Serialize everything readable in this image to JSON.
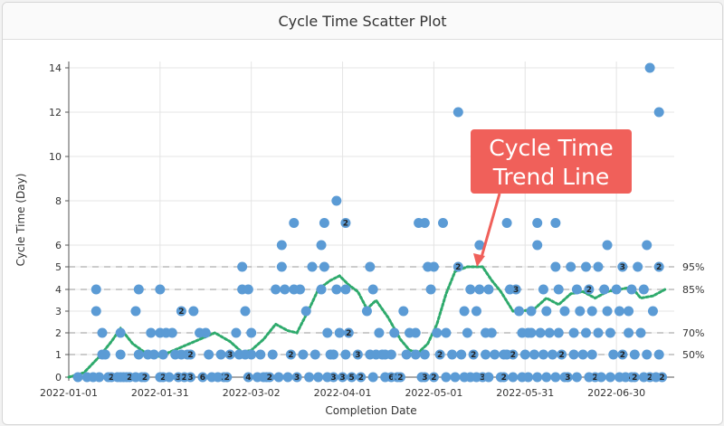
{
  "page": {
    "title": "Cycle Time Scatter Plot"
  },
  "chart_data": {
    "type": "scatter",
    "title": "Cycle Time Scatter Plot",
    "xlabel": "Completion Date",
    "ylabel": "Cycle Time (Day)",
    "x_ticks": [
      "2022-01-01",
      "2022-01-31",
      "2022-03-02",
      "2022-04-01",
      "2022-05-01",
      "2022-05-31",
      "2022-06-30"
    ],
    "y_ticks": [
      0,
      1,
      2,
      3,
      4,
      5,
      6,
      8,
      10,
      12,
      14
    ],
    "y_scale": "nonlinear",
    "xlim": [
      "2022-01-01",
      "2022-07-19"
    ],
    "grid": true,
    "percentiles": [
      {
        "label": "95%",
        "value": 5
      },
      {
        "label": "85%",
        "value": 4
      },
      {
        "label": "70%",
        "value": 2
      },
      {
        "label": "50%",
        "value": 1
      }
    ],
    "annotation": {
      "lines": [
        "Cycle Time",
        "Trend Line"
      ],
      "color": "#f0605a"
    },
    "colors": {
      "point": "#5b9bd5",
      "trend": "#2eaa6c",
      "percentile_line": "#999999"
    },
    "points": [
      {
        "x": "2022-01-04",
        "y": 0
      },
      {
        "x": "2022-01-07",
        "y": 0
      },
      {
        "x": "2022-01-09",
        "y": 0
      },
      {
        "x": "2022-01-10",
        "y": 4
      },
      {
        "x": "2022-01-10",
        "y": 3
      },
      {
        "x": "2022-01-11",
        "y": 0
      },
      {
        "x": "2022-01-12",
        "y": 1
      },
      {
        "x": "2022-01-12",
        "y": 2
      },
      {
        "x": "2022-01-13",
        "y": 1
      },
      {
        "x": "2022-01-14",
        "y": 0
      },
      {
        "x": "2022-01-15",
        "y": 0,
        "n": 2
      },
      {
        "x": "2022-01-17",
        "y": 0
      },
      {
        "x": "2022-01-18",
        "y": 0
      },
      {
        "x": "2022-01-18",
        "y": 2
      },
      {
        "x": "2022-01-18",
        "y": 1
      },
      {
        "x": "2022-01-19",
        "y": 0
      },
      {
        "x": "2022-01-20",
        "y": 0
      },
      {
        "x": "2022-01-21",
        "y": 0,
        "n": 2
      },
      {
        "x": "2022-01-23",
        "y": 0
      },
      {
        "x": "2022-01-23",
        "y": 3
      },
      {
        "x": "2022-01-24",
        "y": 1
      },
      {
        "x": "2022-01-24",
        "y": 4
      },
      {
        "x": "2022-01-25",
        "y": 0
      },
      {
        "x": "2022-01-26",
        "y": 0,
        "n": 2
      },
      {
        "x": "2022-01-27",
        "y": 1
      },
      {
        "x": "2022-01-28",
        "y": 2
      },
      {
        "x": "2022-01-29",
        "y": 1
      },
      {
        "x": "2022-01-31",
        "y": 0
      },
      {
        "x": "2022-01-31",
        "y": 4
      },
      {
        "x": "2022-01-31",
        "y": 2
      },
      {
        "x": "2022-02-01",
        "y": 1
      },
      {
        "x": "2022-02-01",
        "y": 0,
        "n": 2
      },
      {
        "x": "2022-02-02",
        "y": 2
      },
      {
        "x": "2022-02-03",
        "y": 0
      },
      {
        "x": "2022-02-04",
        "y": 2
      },
      {
        "x": "2022-02-05",
        "y": 1
      },
      {
        "x": "2022-02-06",
        "y": 0,
        "n": 3
      },
      {
        "x": "2022-02-07",
        "y": 3,
        "n": 2
      },
      {
        "x": "2022-02-07",
        "y": 1
      },
      {
        "x": "2022-02-08",
        "y": 0,
        "n": 2
      },
      {
        "x": "2022-02-09",
        "y": 1
      },
      {
        "x": "2022-02-10",
        "y": 0,
        "n": 3
      },
      {
        "x": "2022-02-10",
        "y": 1,
        "n": 2
      },
      {
        "x": "2022-02-11",
        "y": 3
      },
      {
        "x": "2022-02-13",
        "y": 2
      },
      {
        "x": "2022-02-14",
        "y": 0,
        "n": 6
      },
      {
        "x": "2022-02-15",
        "y": 2
      },
      {
        "x": "2022-02-16",
        "y": 1
      },
      {
        "x": "2022-02-17",
        "y": 0
      },
      {
        "x": "2022-02-19",
        "y": 0
      },
      {
        "x": "2022-02-20",
        "y": 1
      },
      {
        "x": "2022-02-21",
        "y": 0,
        "n": 3
      },
      {
        "x": "2022-02-22",
        "y": 0,
        "n": 2
      },
      {
        "x": "2022-02-23",
        "y": 1,
        "n": 3
      },
      {
        "x": "2022-02-25",
        "y": 2
      },
      {
        "x": "2022-02-26",
        "y": 1
      },
      {
        "x": "2022-02-27",
        "y": 5
      },
      {
        "x": "2022-02-27",
        "y": 4
      },
      {
        "x": "2022-02-28",
        "y": 3
      },
      {
        "x": "2022-02-28",
        "y": 1
      },
      {
        "x": "2022-03-01",
        "y": 0,
        "n": 4
      },
      {
        "x": "2022-03-01",
        "y": 4
      },
      {
        "x": "2022-03-02",
        "y": 2
      },
      {
        "x": "2022-03-02",
        "y": 1
      },
      {
        "x": "2022-03-04",
        "y": 0
      },
      {
        "x": "2022-03-05",
        "y": 1
      },
      {
        "x": "2022-03-06",
        "y": 0
      },
      {
        "x": "2022-03-07",
        "y": 0
      },
      {
        "x": "2022-03-08",
        "y": 0,
        "n": 2
      },
      {
        "x": "2022-03-09",
        "y": 1
      },
      {
        "x": "2022-03-10",
        "y": 4
      },
      {
        "x": "2022-03-11",
        "y": 0
      },
      {
        "x": "2022-03-12",
        "y": 6
      },
      {
        "x": "2022-03-12",
        "y": 5
      },
      {
        "x": "2022-03-13",
        "y": 4
      },
      {
        "x": "2022-03-14",
        "y": 0
      },
      {
        "x": "2022-03-15",
        "y": 1,
        "n": 2
      },
      {
        "x": "2022-03-16",
        "y": 7
      },
      {
        "x": "2022-03-16",
        "y": 4
      },
      {
        "x": "2022-03-17",
        "y": 0,
        "n": 3
      },
      {
        "x": "2022-03-18",
        "y": 4
      },
      {
        "x": "2022-03-19",
        "y": 1
      },
      {
        "x": "2022-03-20",
        "y": 3
      },
      {
        "x": "2022-03-21",
        "y": 0
      },
      {
        "x": "2022-03-22",
        "y": 5
      },
      {
        "x": "2022-03-23",
        "y": 1
      },
      {
        "x": "2022-03-24",
        "y": 0
      },
      {
        "x": "2022-03-25",
        "y": 6
      },
      {
        "x": "2022-03-25",
        "y": 4
      },
      {
        "x": "2022-03-26",
        "y": 5
      },
      {
        "x": "2022-03-26",
        "y": 7
      },
      {
        "x": "2022-03-27",
        "y": 0
      },
      {
        "x": "2022-03-27",
        "y": 2
      },
      {
        "x": "2022-03-28",
        "y": 1
      },
      {
        "x": "2022-03-29",
        "y": 0,
        "n": 3
      },
      {
        "x": "2022-03-29",
        "y": 1
      },
      {
        "x": "2022-03-30",
        "y": 8
      },
      {
        "x": "2022-03-30",
        "y": 4
      },
      {
        "x": "2022-03-31",
        "y": 2
      },
      {
        "x": "2022-04-01",
        "y": 0,
        "n": 3
      },
      {
        "x": "2022-04-02",
        "y": 1
      },
      {
        "x": "2022-04-02",
        "y": 4
      },
      {
        "x": "2022-04-02",
        "y": 7,
        "n": 2
      },
      {
        "x": "2022-04-03",
        "y": 2,
        "n": 2
      },
      {
        "x": "2022-04-04",
        "y": 0,
        "n": 5
      },
      {
        "x": "2022-04-06",
        "y": 1,
        "n": 3
      },
      {
        "x": "2022-04-07",
        "y": 0,
        "n": 2
      },
      {
        "x": "2022-04-09",
        "y": 3
      },
      {
        "x": "2022-04-10",
        "y": 5
      },
      {
        "x": "2022-04-10",
        "y": 1
      },
      {
        "x": "2022-04-11",
        "y": 0
      },
      {
        "x": "2022-04-11",
        "y": 4
      },
      {
        "x": "2022-04-12",
        "y": 1
      },
      {
        "x": "2022-04-13",
        "y": 2
      },
      {
        "x": "2022-04-14",
        "y": 1
      },
      {
        "x": "2022-04-15",
        "y": 0
      },
      {
        "x": "2022-04-15",
        "y": 1
      },
      {
        "x": "2022-04-17",
        "y": 0,
        "n": 6
      },
      {
        "x": "2022-04-17",
        "y": 1
      },
      {
        "x": "2022-04-18",
        "y": 2
      },
      {
        "x": "2022-04-19",
        "y": 0,
        "n": 3
      },
      {
        "x": "2022-04-20",
        "y": 0,
        "n": 2
      },
      {
        "x": "2022-04-21",
        "y": 3
      },
      {
        "x": "2022-04-22",
        "y": 1
      },
      {
        "x": "2022-04-23",
        "y": 2
      },
      {
        "x": "2022-04-25",
        "y": 2
      },
      {
        "x": "2022-04-25",
        "y": 1
      },
      {
        "x": "2022-04-26",
        "y": 7
      },
      {
        "x": "2022-04-27",
        "y": 0
      },
      {
        "x": "2022-04-28",
        "y": 0,
        "n": 3
      },
      {
        "x": "2022-04-28",
        "y": 7
      },
      {
        "x": "2022-04-28",
        "y": 1
      },
      {
        "x": "2022-04-29",
        "y": 5
      },
      {
        "x": "2022-04-30",
        "y": 4
      },
      {
        "x": "2022-05-01",
        "y": 5
      },
      {
        "x": "2022-05-01",
        "y": 0,
        "n": 2
      },
      {
        "x": "2022-05-02",
        "y": 2
      },
      {
        "x": "2022-05-03",
        "y": 1,
        "n": 2
      },
      {
        "x": "2022-05-04",
        "y": 7
      },
      {
        "x": "2022-05-05",
        "y": 0
      },
      {
        "x": "2022-05-05",
        "y": 2
      },
      {
        "x": "2022-05-07",
        "y": 1
      },
      {
        "x": "2022-05-08",
        "y": 0
      },
      {
        "x": "2022-05-09",
        "y": 5,
        "n": 2
      },
      {
        "x": "2022-05-09",
        "y": 12
      },
      {
        "x": "2022-05-10",
        "y": 1
      },
      {
        "x": "2022-05-11",
        "y": 0
      },
      {
        "x": "2022-05-11",
        "y": 3
      },
      {
        "x": "2022-05-12",
        "y": 2
      },
      {
        "x": "2022-05-13",
        "y": 4
      },
      {
        "x": "2022-05-13",
        "y": 0
      },
      {
        "x": "2022-05-14",
        "y": 1,
        "n": 2
      },
      {
        "x": "2022-05-15",
        "y": 3
      },
      {
        "x": "2022-05-15",
        "y": 0
      },
      {
        "x": "2022-05-16",
        "y": 6
      },
      {
        "x": "2022-05-16",
        "y": 4
      },
      {
        "x": "2022-05-17",
        "y": 0,
        "n": 3
      },
      {
        "x": "2022-05-18",
        "y": 1
      },
      {
        "x": "2022-05-18",
        "y": 2
      },
      {
        "x": "2022-05-19",
        "y": 4
      },
      {
        "x": "2022-05-19",
        "y": 0
      },
      {
        "x": "2022-05-20",
        "y": 2
      },
      {
        "x": "2022-05-21",
        "y": 1
      },
      {
        "x": "2022-05-23",
        "y": 0
      },
      {
        "x": "2022-05-24",
        "y": 0,
        "n": 2
      },
      {
        "x": "2022-05-24",
        "y": 1
      },
      {
        "x": "2022-05-25",
        "y": 7
      },
      {
        "x": "2022-05-25",
        "y": 1
      },
      {
        "x": "2022-05-26",
        "y": 4
      },
      {
        "x": "2022-05-27",
        "y": 0
      },
      {
        "x": "2022-05-27",
        "y": 1,
        "n": 2
      },
      {
        "x": "2022-05-28",
        "y": 4,
        "n": 3
      },
      {
        "x": "2022-05-29",
        "y": 3
      },
      {
        "x": "2022-05-30",
        "y": 2
      },
      {
        "x": "2022-05-30",
        "y": 0
      },
      {
        "x": "2022-05-31",
        "y": 1
      },
      {
        "x": "2022-06-01",
        "y": 0
      },
      {
        "x": "2022-06-01",
        "y": 2
      },
      {
        "x": "2022-06-02",
        "y": 3
      },
      {
        "x": "2022-06-02",
        "y": 2
      },
      {
        "x": "2022-06-03",
        "y": 1
      },
      {
        "x": "2022-06-04",
        "y": 0
      },
      {
        "x": "2022-06-04",
        "y": 7
      },
      {
        "x": "2022-06-04",
        "y": 6
      },
      {
        "x": "2022-06-05",
        "y": 2
      },
      {
        "x": "2022-06-06",
        "y": 4
      },
      {
        "x": "2022-06-06",
        "y": 1
      },
      {
        "x": "2022-06-07",
        "y": 3
      },
      {
        "x": "2022-06-07",
        "y": 0
      },
      {
        "x": "2022-06-08",
        "y": 2
      },
      {
        "x": "2022-06-09",
        "y": 1
      },
      {
        "x": "2022-06-10",
        "y": 7
      },
      {
        "x": "2022-06-10",
        "y": 5
      },
      {
        "x": "2022-06-10",
        "y": 0
      },
      {
        "x": "2022-06-11",
        "y": 4
      },
      {
        "x": "2022-06-11",
        "y": 2
      },
      {
        "x": "2022-06-12",
        "y": 1,
        "n": 2
      },
      {
        "x": "2022-06-13",
        "y": 3
      },
      {
        "x": "2022-06-13",
        "y": 0
      },
      {
        "x": "2022-06-14",
        "y": 0,
        "n": 3
      },
      {
        "x": "2022-06-15",
        "y": 5
      },
      {
        "x": "2022-06-16",
        "y": 2
      },
      {
        "x": "2022-06-16",
        "y": 1
      },
      {
        "x": "2022-06-17",
        "y": 4
      },
      {
        "x": "2022-06-17",
        "y": 0
      },
      {
        "x": "2022-06-18",
        "y": 3
      },
      {
        "x": "2022-06-19",
        "y": 1
      },
      {
        "x": "2022-06-20",
        "y": 5
      },
      {
        "x": "2022-06-20",
        "y": 2
      },
      {
        "x": "2022-06-21",
        "y": 0
      },
      {
        "x": "2022-06-21",
        "y": 4,
        "n": 2
      },
      {
        "x": "2022-06-22",
        "y": 3
      },
      {
        "x": "2022-06-22",
        "y": 1
      },
      {
        "x": "2022-06-23",
        "y": 0,
        "n": 2
      },
      {
        "x": "2022-06-24",
        "y": 2
      },
      {
        "x": "2022-06-24",
        "y": 5
      },
      {
        "x": "2022-06-25",
        "y": 0
      },
      {
        "x": "2022-06-26",
        "y": 4
      },
      {
        "x": "2022-06-27",
        "y": 3
      },
      {
        "x": "2022-06-27",
        "y": 6
      },
      {
        "x": "2022-06-28",
        "y": 2
      },
      {
        "x": "2022-06-28",
        "y": 0
      },
      {
        "x": "2022-06-29",
        "y": 1
      },
      {
        "x": "2022-06-30",
        "y": 4
      },
      {
        "x": "2022-07-01",
        "y": 3
      },
      {
        "x": "2022-07-01",
        "y": 0
      },
      {
        "x": "2022-07-02",
        "y": 5,
        "n": 3
      },
      {
        "x": "2022-07-02",
        "y": 1,
        "n": 2
      },
      {
        "x": "2022-07-03",
        "y": 0
      },
      {
        "x": "2022-07-04",
        "y": 3
      },
      {
        "x": "2022-07-04",
        "y": 2
      },
      {
        "x": "2022-07-05",
        "y": 4
      },
      {
        "x": "2022-07-05",
        "y": 0,
        "n": 4
      },
      {
        "x": "2022-07-06",
        "y": 1
      },
      {
        "x": "2022-07-06",
        "y": 0,
        "n": 2
      },
      {
        "x": "2022-07-07",
        "y": 5
      },
      {
        "x": "2022-07-08",
        "y": 2
      },
      {
        "x": "2022-07-09",
        "y": 4
      },
      {
        "x": "2022-07-09",
        "y": 0
      },
      {
        "x": "2022-07-10",
        "y": 6
      },
      {
        "x": "2022-07-10",
        "y": 1
      },
      {
        "x": "2022-07-11",
        "y": 14
      },
      {
        "x": "2022-07-11",
        "y": 0,
        "n": 2
      },
      {
        "x": "2022-07-12",
        "y": 3
      },
      {
        "x": "2022-07-13",
        "y": 0
      },
      {
        "x": "2022-07-14",
        "y": 12
      },
      {
        "x": "2022-07-14",
        "y": 5,
        "n": 2
      },
      {
        "x": "2022-07-14",
        "y": 1
      },
      {
        "x": "2022-07-15",
        "y": 0,
        "n": 2
      }
    ],
    "trend": [
      {
        "x": "2022-01-01",
        "y": 0
      },
      {
        "x": "2022-01-06",
        "y": 0.2
      },
      {
        "x": "2022-01-11",
        "y": 0.9
      },
      {
        "x": "2022-01-15",
        "y": 1.6
      },
      {
        "x": "2022-01-18",
        "y": 2.2
      },
      {
        "x": "2022-01-22",
        "y": 1.5
      },
      {
        "x": "2022-01-26",
        "y": 1.1
      },
      {
        "x": "2022-01-30",
        "y": 0.9
      },
      {
        "x": "2022-02-03",
        "y": 1.1
      },
      {
        "x": "2022-02-08",
        "y": 1.4
      },
      {
        "x": "2022-02-13",
        "y": 1.7
      },
      {
        "x": "2022-02-18",
        "y": 2.0
      },
      {
        "x": "2022-02-23",
        "y": 1.6
      },
      {
        "x": "2022-02-27",
        "y": 1.1
      },
      {
        "x": "2022-03-02",
        "y": 1.2
      },
      {
        "x": "2022-03-06",
        "y": 1.7
      },
      {
        "x": "2022-03-10",
        "y": 2.4
      },
      {
        "x": "2022-03-14",
        "y": 2.1
      },
      {
        "x": "2022-03-17",
        "y": 2.0
      },
      {
        "x": "2022-03-21",
        "y": 3.1
      },
      {
        "x": "2022-03-24",
        "y": 4.0
      },
      {
        "x": "2022-03-28",
        "y": 4.4
      },
      {
        "x": "2022-03-31",
        "y": 4.6
      },
      {
        "x": "2022-04-03",
        "y": 4.2
      },
      {
        "x": "2022-04-06",
        "y": 3.9
      },
      {
        "x": "2022-04-09",
        "y": 3.1
      },
      {
        "x": "2022-04-12",
        "y": 3.5
      },
      {
        "x": "2022-04-16",
        "y": 2.7
      },
      {
        "x": "2022-04-20",
        "y": 1.7
      },
      {
        "x": "2022-04-23",
        "y": 1.2
      },
      {
        "x": "2022-04-26",
        "y": 1.1
      },
      {
        "x": "2022-04-29",
        "y": 1.5
      },
      {
        "x": "2022-05-02",
        "y": 2.4
      },
      {
        "x": "2022-05-05",
        "y": 3.8
      },
      {
        "x": "2022-05-08",
        "y": 4.8
      },
      {
        "x": "2022-05-12",
        "y": 5.0
      },
      {
        "x": "2022-05-17",
        "y": 5.0
      },
      {
        "x": "2022-05-20",
        "y": 4.4
      },
      {
        "x": "2022-05-23",
        "y": 3.9
      },
      {
        "x": "2022-05-27",
        "y": 3.0
      },
      {
        "x": "2022-05-30",
        "y": 3.0
      },
      {
        "x": "2022-06-03",
        "y": 3.1
      },
      {
        "x": "2022-06-07",
        "y": 3.6
      },
      {
        "x": "2022-06-11",
        "y": 3.3
      },
      {
        "x": "2022-06-15",
        "y": 3.8
      },
      {
        "x": "2022-06-19",
        "y": 3.9
      },
      {
        "x": "2022-06-23",
        "y": 3.6
      },
      {
        "x": "2022-06-27",
        "y": 3.9
      },
      {
        "x": "2022-07-01",
        "y": 4.0
      },
      {
        "x": "2022-07-05",
        "y": 4.1
      },
      {
        "x": "2022-07-08",
        "y": 3.6
      },
      {
        "x": "2022-07-12",
        "y": 3.7
      },
      {
        "x": "2022-07-16",
        "y": 4.0
      }
    ]
  }
}
